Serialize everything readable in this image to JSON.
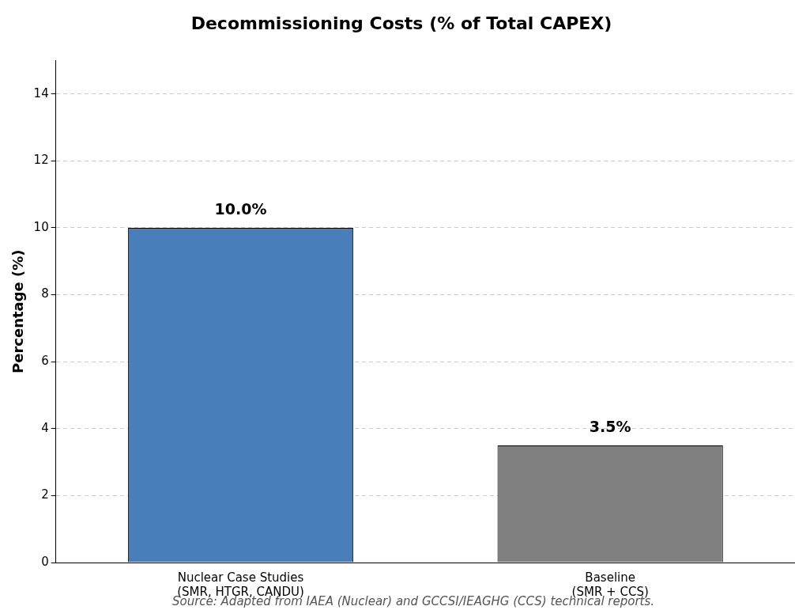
{
  "chart_data": {
    "type": "bar",
    "title": "Decommissioning Costs (% of Total CAPEX)",
    "ylabel": "Percentage (%)",
    "categories": [
      "Nuclear Case Studies\n(SMR, HTGR, CANDU)",
      "Baseline\n(SMR + CCS)"
    ],
    "values": [
      10.0,
      3.5
    ],
    "colors": [
      "#4a7ebb",
      "#808080"
    ],
    "value_labels": [
      "10.0%",
      "3.5%"
    ],
    "ylim": [
      0,
      15
    ],
    "yticks": [
      0,
      2,
      4,
      6,
      8,
      10,
      12,
      14
    ],
    "grid": "y",
    "legend": false,
    "annotations": [
      "Source: Adapted from IAEA (Nuclear) and GCCSI/IEAGHG (CCS) technical reports."
    ]
  }
}
